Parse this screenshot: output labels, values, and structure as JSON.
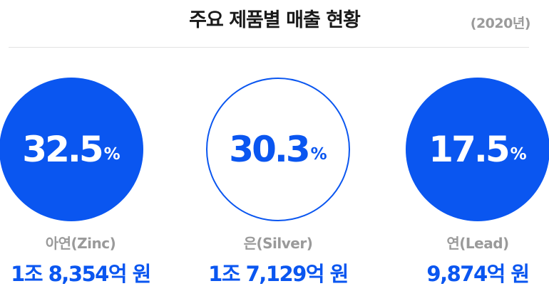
{
  "header": {
    "title": "주요 제품별 매출 현황",
    "year": "(2020년)"
  },
  "chart_data": {
    "type": "pie",
    "unit": "%",
    "items": [
      {
        "name": "아연(Zinc)",
        "percent": 32.5,
        "percent_label": "32.5",
        "revenue": "1조 8,354억 원",
        "style": "filled"
      },
      {
        "name": "은(Silver)",
        "percent": 30.3,
        "percent_label": "30.3",
        "revenue": "1조 7,129억 원",
        "style": "outline"
      },
      {
        "name": "연(Lead)",
        "percent": 17.5,
        "percent_label": "17.5",
        "revenue": "9,874억 원",
        "style": "filled"
      }
    ]
  },
  "colors": {
    "accent": "#0a56f0",
    "label_gray": "#9a9a9a",
    "title": "#1a1a1a"
  }
}
